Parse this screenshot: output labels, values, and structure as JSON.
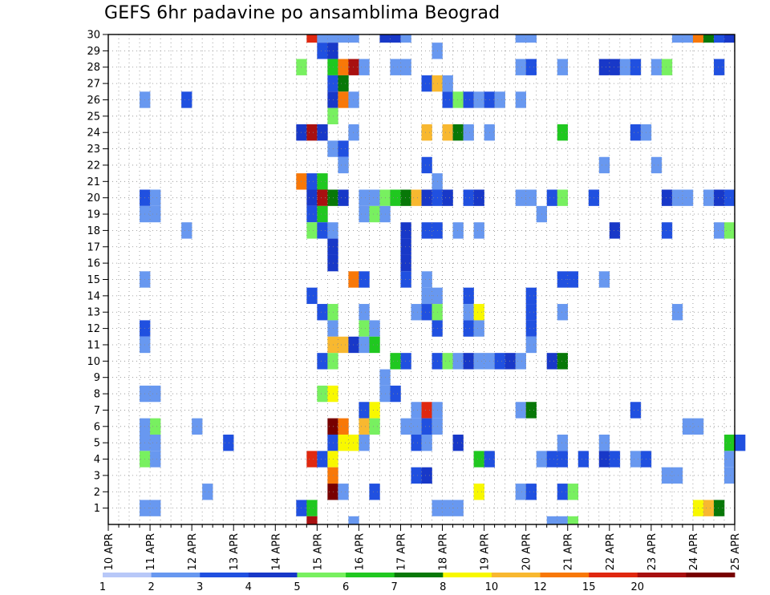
{
  "chart_data": {
    "type": "heatmap",
    "title": "GEFS 6hr padavine po ansamblima Beograd",
    "xlabel": "",
    "ylabel": "",
    "x_ticks": [
      "10 APR",
      "11 APR",
      "12 APR",
      "13 APR",
      "14 APR",
      "15 APR",
      "16 APR",
      "17 APR",
      "18 APR",
      "19 APR",
      "20 APR",
      "21 APR",
      "22 APR",
      "23 APR",
      "24 APR",
      "25 APR"
    ],
    "xlim": [
      "10 APR 00Z",
      "25 APR 00Z"
    ],
    "time_step_hours": 6,
    "y_ticks": [
      1,
      2,
      3,
      4,
      5,
      6,
      7,
      8,
      9,
      10,
      11,
      12,
      13,
      14,
      15,
      16,
      17,
      18,
      19,
      20,
      21,
      22,
      23,
      24,
      25,
      26,
      27,
      28,
      29,
      30
    ],
    "ylim": [
      0,
      30
    ],
    "grid": true,
    "legend": {
      "position": "bottom",
      "labels": [
        "1",
        "2",
        "3",
        "4",
        "5",
        "6",
        "7",
        "8",
        "10",
        "12",
        "15",
        "20"
      ],
      "colors": [
        "#b8c8f8",
        "#6898f0",
        "#2050e0",
        "#1838c8",
        "#78f060",
        "#20c820",
        "#087808",
        "#f8f800",
        "#f8b830",
        "#f87808",
        "#e02810",
        "#a81010",
        "#780000"
      ]
    },
    "cells": [
      [
        30,
        "14 APR 18Z",
        12
      ],
      [
        30,
        "15 APR 00Z",
        1
      ],
      [
        30,
        "15 APR 06Z",
        1
      ],
      [
        30,
        "15 APR 12Z",
        1
      ],
      [
        30,
        "15 APR 18Z",
        1
      ],
      [
        30,
        "16 APR 12Z",
        3
      ],
      [
        30,
        "16 APR 18Z",
        3
      ],
      [
        30,
        "17 APR 00Z",
        1
      ],
      [
        30,
        "19 APR 18Z",
        1
      ],
      [
        30,
        "20 APR 00Z",
        1
      ],
      [
        30,
        "23 APR 12Z",
        1
      ],
      [
        30,
        "23 APR 18Z",
        1
      ],
      [
        30,
        "24 APR 00Z",
        10
      ],
      [
        30,
        "24 APR 06Z",
        6
      ],
      [
        30,
        "24 APR 12Z",
        2
      ],
      [
        30,
        "24 APR 18Z",
        3
      ],
      [
        29,
        "15 APR 00Z",
        2
      ],
      [
        29,
        "15 APR 06Z",
        3
      ],
      [
        29,
        "17 APR 18Z",
        1
      ],
      [
        28,
        "14 APR 12Z",
        4
      ],
      [
        28,
        "15 APR 06Z",
        5
      ],
      [
        28,
        "15 APR 12Z",
        11
      ],
      [
        28,
        "15 APR 18Z",
        15
      ],
      [
        28,
        "16 APR 00Z",
        1
      ],
      [
        28,
        "16 APR 18Z",
        1
      ],
      [
        28,
        "17 APR 00Z",
        1
      ],
      [
        28,
        "19 APR 18Z",
        1
      ],
      [
        28,
        "20 APR 00Z",
        2
      ],
      [
        28,
        "20 APR 18Z",
        1
      ],
      [
        28,
        "21 APR 18Z",
        3
      ],
      [
        28,
        "22 APR 00Z",
        3
      ],
      [
        28,
        "22 APR 06Z",
        1
      ],
      [
        28,
        "22 APR 12Z",
        2
      ],
      [
        28,
        "23 APR 00Z",
        1
      ],
      [
        28,
        "23 APR 06Z",
        4
      ],
      [
        28,
        "24 APR 12Z",
        2
      ],
      [
        27,
        "15 APR 06Z",
        2
      ],
      [
        27,
        "15 APR 12Z",
        6
      ],
      [
        27,
        "17 APR 12Z",
        2
      ],
      [
        27,
        "17 APR 18Z",
        8
      ],
      [
        27,
        "18 APR 00Z",
        1
      ],
      [
        26,
        "10 APR 18Z",
        1
      ],
      [
        26,
        "11 APR 18Z",
        2
      ],
      [
        26,
        "15 APR 06Z",
        3
      ],
      [
        26,
        "15 APR 12Z",
        11
      ],
      [
        26,
        "15 APR 18Z",
        1
      ],
      [
        26,
        "18 APR 00Z",
        2
      ],
      [
        26,
        "18 APR 06Z",
        4
      ],
      [
        26,
        "18 APR 12Z",
        2
      ],
      [
        26,
        "18 APR 18Z",
        1
      ],
      [
        26,
        "19 APR 00Z",
        2
      ],
      [
        26,
        "19 APR 06Z",
        1
      ],
      [
        26,
        "19 APR 18Z",
        1
      ],
      [
        25,
        "15 APR 06Z",
        4
      ],
      [
        24,
        "14 APR 12Z",
        3
      ],
      [
        24,
        "14 APR 18Z",
        15
      ],
      [
        24,
        "15 APR 00Z",
        3
      ],
      [
        24,
        "15 APR 18Z",
        1
      ],
      [
        24,
        "17 APR 12Z",
        8
      ],
      [
        24,
        "18 APR 00Z",
        8
      ],
      [
        24,
        "18 APR 06Z",
        6
      ],
      [
        24,
        "18 APR 12Z",
        1
      ],
      [
        24,
        "19 APR 00Z",
        1
      ],
      [
        24,
        "20 APR 18Z",
        5
      ],
      [
        24,
        "22 APR 12Z",
        2
      ],
      [
        24,
        "22 APR 18Z",
        1
      ],
      [
        23,
        "15 APR 06Z",
        1
      ],
      [
        23,
        "15 APR 12Z",
        2
      ],
      [
        22,
        "15 APR 12Z",
        1
      ],
      [
        22,
        "17 APR 12Z",
        2
      ],
      [
        22,
        "21 APR 18Z",
        1
      ],
      [
        22,
        "23 APR 00Z",
        1
      ],
      [
        21,
        "14 APR 12Z",
        10
      ],
      [
        21,
        "14 APR 18Z",
        2
      ],
      [
        21,
        "15 APR 00Z",
        5
      ],
      [
        21,
        "17 APR 18Z",
        1
      ],
      [
        20,
        "10 APR 18Z",
        2
      ],
      [
        20,
        "11 APR 00Z",
        1
      ],
      [
        20,
        "14 APR 18Z",
        3
      ],
      [
        20,
        "15 APR 00Z",
        15
      ],
      [
        20,
        "15 APR 06Z",
        6
      ],
      [
        20,
        "15 APR 12Z",
        3
      ],
      [
        20,
        "16 APR 00Z",
        1
      ],
      [
        20,
        "16 APR 06Z",
        1
      ],
      [
        20,
        "16 APR 12Z",
        4
      ],
      [
        20,
        "16 APR 18Z",
        5
      ],
      [
        20,
        "17 APR 00Z",
        6
      ],
      [
        20,
        "17 APR 06Z",
        8
      ],
      [
        20,
        "17 APR 12Z",
        3
      ],
      [
        20,
        "17 APR 18Z",
        2
      ],
      [
        20,
        "18 APR 00Z",
        3
      ],
      [
        20,
        "18 APR 12Z",
        2
      ],
      [
        20,
        "18 APR 18Z",
        3
      ],
      [
        20,
        "19 APR 18Z",
        1
      ],
      [
        20,
        "20 APR 00Z",
        1
      ],
      [
        20,
        "20 APR 12Z",
        2
      ],
      [
        20,
        "20 APR 18Z",
        4
      ],
      [
        20,
        "21 APR 12Z",
        2
      ],
      [
        20,
        "23 APR 06Z",
        3
      ],
      [
        20,
        "23 APR 12Z",
        1
      ],
      [
        20,
        "23 APR 18Z",
        1
      ],
      [
        20,
        "24 APR 06Z",
        1
      ],
      [
        20,
        "24 APR 12Z",
        3
      ],
      [
        20,
        "24 APR 18Z",
        2
      ],
      [
        19,
        "10 APR 18Z",
        1
      ],
      [
        19,
        "11 APR 00Z",
        1
      ],
      [
        19,
        "14 APR 18Z",
        2
      ],
      [
        19,
        "15 APR 00Z",
        5
      ],
      [
        19,
        "16 APR 00Z",
        1
      ],
      [
        19,
        "16 APR 06Z",
        4
      ],
      [
        19,
        "16 APR 12Z",
        1
      ],
      [
        19,
        "20 APR 06Z",
        1
      ],
      [
        18,
        "11 APR 18Z",
        1
      ],
      [
        18,
        "14 APR 18Z",
        4
      ],
      [
        18,
        "15 APR 00Z",
        2
      ],
      [
        18,
        "15 APR 06Z",
        1
      ],
      [
        18,
        "17 APR 00Z",
        3
      ],
      [
        18,
        "17 APR 12Z",
        2
      ],
      [
        18,
        "17 APR 18Z",
        2
      ],
      [
        18,
        "18 APR 06Z",
        1
      ],
      [
        18,
        "18 APR 18Z",
        1
      ],
      [
        18,
        "22 APR 00Z",
        3
      ],
      [
        18,
        "23 APR 06Z",
        2
      ],
      [
        18,
        "24 APR 12Z",
        1
      ],
      [
        18,
        "24 APR 18Z",
        4
      ],
      [
        17,
        "15 APR 06Z",
        3
      ],
      [
        17,
        "17 APR 00Z",
        3
      ],
      [
        16,
        "15 APR 06Z",
        3
      ],
      [
        16,
        "17 APR 00Z",
        3
      ],
      [
        15,
        "10 APR 18Z",
        1
      ],
      [
        15,
        "15 APR 18Z",
        10
      ],
      [
        15,
        "16 APR 00Z",
        2
      ],
      [
        15,
        "17 APR 00Z",
        2
      ],
      [
        15,
        "17 APR 12Z",
        1
      ],
      [
        15,
        "20 APR 18Z",
        2
      ],
      [
        15,
        "21 APR 00Z",
        2
      ],
      [
        15,
        "21 APR 18Z",
        1
      ],
      [
        14,
        "14 APR 18Z",
        2
      ],
      [
        14,
        "17 APR 12Z",
        1
      ],
      [
        14,
        "17 APR 18Z",
        1
      ],
      [
        14,
        "18 APR 12Z",
        2
      ],
      [
        14,
        "20 APR 00Z",
        2
      ],
      [
        13,
        "15 APR 00Z",
        2
      ],
      [
        13,
        "15 APR 06Z",
        4
      ],
      [
        13,
        "16 APR 00Z",
        1
      ],
      [
        13,
        "17 APR 06Z",
        1
      ],
      [
        13,
        "17 APR 12Z",
        2
      ],
      [
        13,
        "17 APR 18Z",
        4
      ],
      [
        13,
        "18 APR 12Z",
        1
      ],
      [
        13,
        "18 APR 18Z",
        7
      ],
      [
        13,
        "20 APR 00Z",
        2
      ],
      [
        13,
        "20 APR 18Z",
        1
      ],
      [
        13,
        "23 APR 12Z",
        1
      ],
      [
        12,
        "10 APR 18Z",
        2
      ],
      [
        12,
        "15 APR 06Z",
        1
      ],
      [
        12,
        "16 APR 00Z",
        4
      ],
      [
        12,
        "16 APR 06Z",
        1
      ],
      [
        12,
        "17 APR 18Z",
        2
      ],
      [
        12,
        "18 APR 12Z",
        2
      ],
      [
        12,
        "18 APR 18Z",
        1
      ],
      [
        12,
        "20 APR 00Z",
        2
      ],
      [
        11,
        "10 APR 18Z",
        1
      ],
      [
        11,
        "15 APR 06Z",
        8
      ],
      [
        11,
        "15 APR 12Z",
        8
      ],
      [
        11,
        "15 APR 18Z",
        3
      ],
      [
        11,
        "16 APR 00Z",
        1
      ],
      [
        11,
        "16 APR 06Z",
        5
      ],
      [
        11,
        "20 APR 00Z",
        1
      ],
      [
        10,
        "15 APR 00Z",
        2
      ],
      [
        10,
        "15 APR 06Z",
        4
      ],
      [
        10,
        "16 APR 18Z",
        5
      ],
      [
        10,
        "17 APR 00Z",
        2
      ],
      [
        10,
        "17 APR 18Z",
        2
      ],
      [
        10,
        "18 APR 00Z",
        4
      ],
      [
        10,
        "18 APR 06Z",
        1
      ],
      [
        10,
        "18 APR 12Z",
        3
      ],
      [
        10,
        "18 APR 18Z",
        1
      ],
      [
        10,
        "19 APR 00Z",
        1
      ],
      [
        10,
        "19 APR 06Z",
        2
      ],
      [
        10,
        "19 APR 12Z",
        3
      ],
      [
        10,
        "19 APR 18Z",
        1
      ],
      [
        10,
        "20 APR 12Z",
        3
      ],
      [
        10,
        "20 APR 18Z",
        6
      ],
      [
        9,
        "16 APR 12Z",
        1
      ],
      [
        8,
        "10 APR 18Z",
        1
      ],
      [
        8,
        "11 APR 00Z",
        1
      ],
      [
        8,
        "15 APR 00Z",
        4
      ],
      [
        8,
        "15 APR 06Z",
        7
      ],
      [
        8,
        "16 APR 12Z",
        1
      ],
      [
        8,
        "16 APR 18Z",
        2
      ],
      [
        7,
        "16 APR 00Z",
        2
      ],
      [
        7,
        "16 APR 06Z",
        7
      ],
      [
        7,
        "17 APR 06Z",
        1
      ],
      [
        7,
        "17 APR 12Z",
        12
      ],
      [
        7,
        "17 APR 18Z",
        1
      ],
      [
        7,
        "19 APR 18Z",
        1
      ],
      [
        7,
        "20 APR 00Z",
        6
      ],
      [
        7,
        "22 APR 12Z",
        2
      ],
      [
        6,
        "10 APR 18Z",
        1
      ],
      [
        6,
        "11 APR 00Z",
        4
      ],
      [
        6,
        "12 APR 00Z",
        1
      ],
      [
        6,
        "15 APR 06Z",
        20
      ],
      [
        6,
        "15 APR 12Z",
        10
      ],
      [
        6,
        "16 APR 00Z",
        8
      ],
      [
        6,
        "16 APR 06Z",
        4
      ],
      [
        6,
        "17 APR 00Z",
        1
      ],
      [
        6,
        "17 APR 06Z",
        1
      ],
      [
        6,
        "17 APR 12Z",
        2
      ],
      [
        6,
        "17 APR 18Z",
        1
      ],
      [
        6,
        "23 APR 18Z",
        1
      ],
      [
        6,
        "24 APR 00Z",
        1
      ],
      [
        5,
        "10 APR 18Z",
        1
      ],
      [
        5,
        "11 APR 00Z",
        1
      ],
      [
        5,
        "12 APR 18Z",
        2
      ],
      [
        5,
        "15 APR 06Z",
        2
      ],
      [
        5,
        "15 APR 12Z",
        7
      ],
      [
        5,
        "15 APR 18Z",
        7
      ],
      [
        5,
        "16 APR 00Z",
        1
      ],
      [
        5,
        "17 APR 06Z",
        2
      ],
      [
        5,
        "17 APR 12Z",
        1
      ],
      [
        5,
        "18 APR 06Z",
        3
      ],
      [
        5,
        "20 APR 18Z",
        1
      ],
      [
        5,
        "21 APR 18Z",
        1
      ],
      [
        5,
        "24 APR 18Z",
        5
      ],
      [
        5,
        "25 APR 00Z",
        2
      ],
      [
        4,
        "10 APR 18Z",
        4
      ],
      [
        4,
        "11 APR 00Z",
        1
      ],
      [
        4,
        "14 APR 18Z",
        12
      ],
      [
        4,
        "15 APR 00Z",
        2
      ],
      [
        4,
        "15 APR 06Z",
        7
      ],
      [
        4,
        "18 APR 18Z",
        5
      ],
      [
        4,
        "19 APR 00Z",
        2
      ],
      [
        4,
        "20 APR 06Z",
        1
      ],
      [
        4,
        "20 APR 12Z",
        2
      ],
      [
        4,
        "20 APR 18Z",
        2
      ],
      [
        4,
        "21 APR 06Z",
        2
      ],
      [
        4,
        "21 APR 18Z",
        3
      ],
      [
        4,
        "22 APR 00Z",
        2
      ],
      [
        4,
        "22 APR 12Z",
        1
      ],
      [
        4,
        "22 APR 18Z",
        2
      ],
      [
        4,
        "24 APR 18Z",
        1
      ],
      [
        3,
        "15 APR 06Z",
        10
      ],
      [
        3,
        "17 APR 06Z",
        2
      ],
      [
        3,
        "17 APR 12Z",
        3
      ],
      [
        3,
        "23 APR 06Z",
        1
      ],
      [
        3,
        "23 APR 12Z",
        1
      ],
      [
        3,
        "24 APR 18Z",
        1
      ],
      [
        2,
        "12 APR 06Z",
        1
      ],
      [
        2,
        "15 APR 06Z",
        20
      ],
      [
        2,
        "15 APR 12Z",
        1
      ],
      [
        2,
        "16 APR 06Z",
        2
      ],
      [
        2,
        "18 APR 18Z",
        7
      ],
      [
        2,
        "19 APR 18Z",
        1
      ],
      [
        2,
        "20 APR 00Z",
        2
      ],
      [
        2,
        "20 APR 18Z",
        2
      ],
      [
        2,
        "21 APR 00Z",
        4
      ],
      [
        1,
        "10 APR 18Z",
        1
      ],
      [
        1,
        "11 APR 00Z",
        1
      ],
      [
        1,
        "14 APR 12Z",
        2
      ],
      [
        1,
        "14 APR 18Z",
        5
      ],
      [
        1,
        "17 APR 18Z",
        1
      ],
      [
        1,
        "18 APR 00Z",
        1
      ],
      [
        1,
        "18 APR 06Z",
        1
      ],
      [
        1,
        "24 APR 00Z",
        7
      ],
      [
        1,
        "24 APR 06Z",
        8
      ],
      [
        1,
        "24 APR 12Z",
        6
      ],
      [
        0,
        "14 APR 18Z",
        15
      ],
      [
        0,
        "15 APR 18Z",
        1
      ],
      [
        0,
        "20 APR 12Z",
        1
      ],
      [
        0,
        "20 APR 18Z",
        1
      ],
      [
        0,
        "21 APR 00Z",
        4
      ]
    ]
  }
}
